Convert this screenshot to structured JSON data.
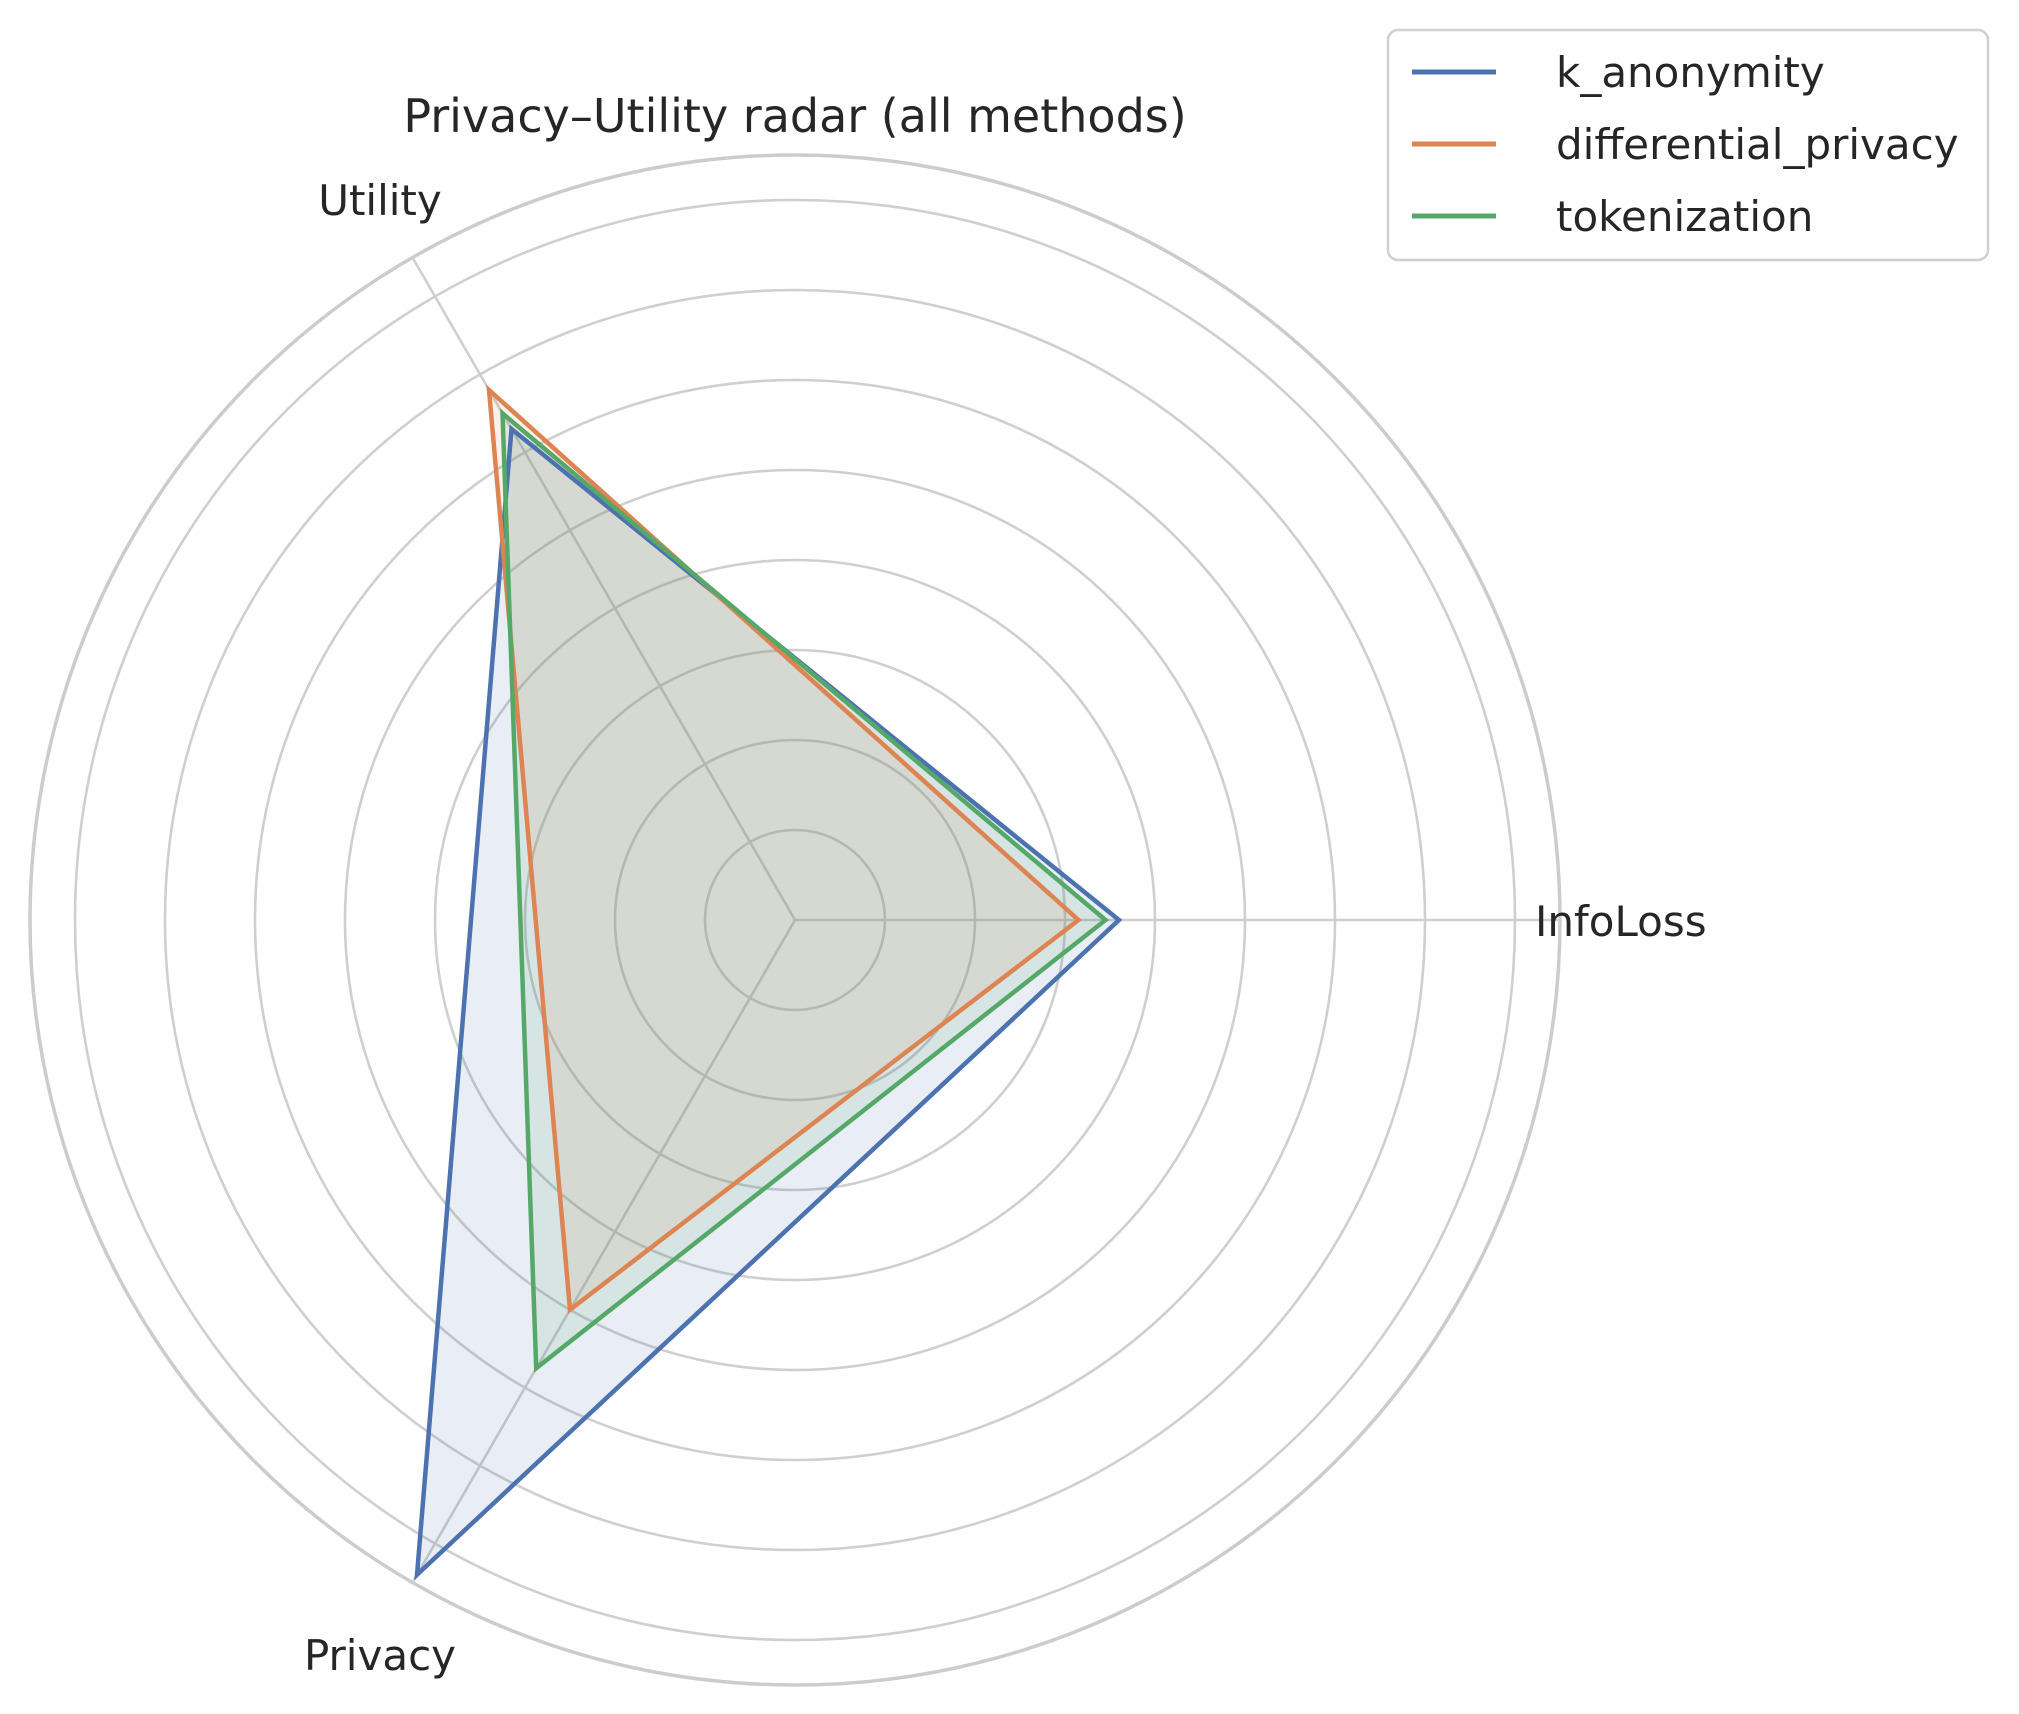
{
  "chart_data": {
    "type": "radar",
    "title": "Privacy–Utility radar (all methods)",
    "axes": [
      "InfoLoss",
      "Utility",
      "Privacy"
    ],
    "rlim": [
      0,
      0.85
    ],
    "rgrid": [
      0.1,
      0.2,
      0.3,
      0.4,
      0.5,
      0.6,
      0.7,
      0.8,
      0.85
    ],
    "grid": true,
    "legend_position": "top-right",
    "series": [
      {
        "name": "k_anonymity",
        "values": [
          0.36,
          0.63,
          0.84
        ],
        "color": "#4c72b0"
      },
      {
        "name": "differential_privacy",
        "values": [
          0.315,
          0.68,
          0.5
        ],
        "color": "#dd8452"
      },
      {
        "name": "tokenization",
        "values": [
          0.345,
          0.65,
          0.575
        ],
        "color": "#55a868"
      }
    ]
  }
}
